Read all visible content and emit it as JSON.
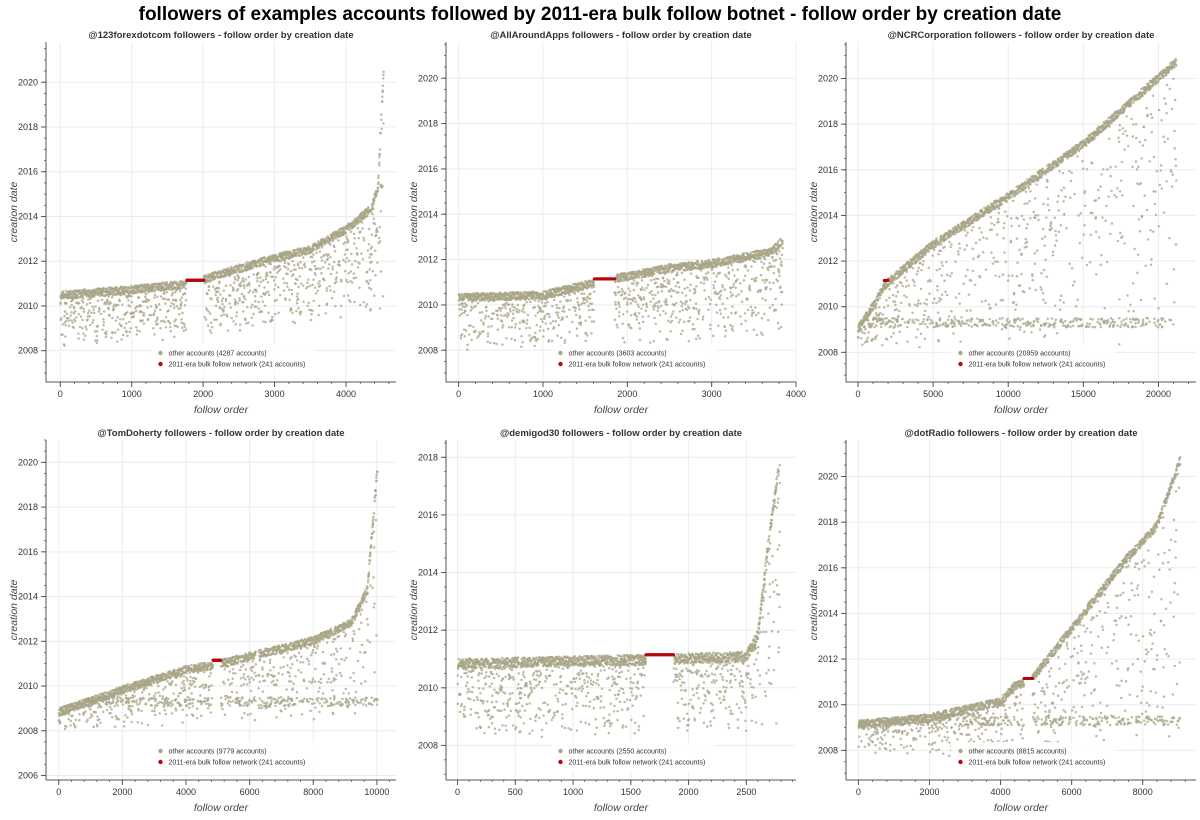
{
  "suptitle": "followers of examples accounts followed by 2011-era bulk follow botnet - follow order by creation date",
  "colors": {
    "other": "#a8a487",
    "botnet": "#b5090b",
    "grid": "#ececec",
    "axis": "#555555"
  },
  "chart_data": [
    {
      "type": "scatter",
      "title": "@123forexdotcom followers - follow order by creation date",
      "xlabel": "follow order",
      "ylabel": "creation date",
      "xlim": [
        -200,
        4700
      ],
      "ylim": [
        2006.6,
        2021.8
      ],
      "xticks": [
        0,
        1000,
        2000,
        3000,
        4000
      ],
      "yticks": [
        2008,
        2010,
        2012,
        2014,
        2016,
        2018,
        2020
      ],
      "legend_position": "bottom-center",
      "series": [
        {
          "name": "other accounts (4287 accounts)",
          "count": 4287,
          "color": "#a8a487"
        },
        {
          "name": "2011-era bulk follow network (241 accounts)",
          "count": 241,
          "color": "#b5090b",
          "x_range": [
            1770,
            2010
          ],
          "y": 2011.15
        }
      ],
      "shape": {
        "n": 4528,
        "top": [
          [
            0,
            2010.65
          ],
          [
            1000,
            2010.9
          ],
          [
            1770,
            2011.15
          ],
          [
            2500,
            2011.85
          ],
          [
            3000,
            2012.3
          ],
          [
            3500,
            2012.7
          ],
          [
            4000,
            2013.6
          ],
          [
            4350,
            2014.5
          ],
          [
            4450,
            2015.5
          ],
          [
            4528,
            2020.9
          ]
        ],
        "low": [
          [
            0,
            2008.0
          ],
          [
            4528,
            2009.5
          ]
        ],
        "gaps": [
          [
            1770,
            2010
          ]
        ]
      }
    },
    {
      "type": "scatter",
      "title": "@AllAroundApps followers - follow order by creation date",
      "xlabel": "follow order",
      "ylabel": "creation date",
      "xlim": [
        -150,
        4000
      ],
      "ylim": [
        2006.6,
        2021.6
      ],
      "xticks": [
        0,
        1000,
        2000,
        3000,
        4000
      ],
      "xtick_labels": [
        "0",
        "1000",
        "2000",
        "3000",
        "4000"
      ],
      "yticks": [
        2008,
        2010,
        2012,
        2014,
        2016,
        2018,
        2020
      ],
      "legend_position": "bottom-center",
      "series": [
        {
          "name": "other accounts (3603 accounts)",
          "count": 3603,
          "color": "#a8a487"
        },
        {
          "name": "2011-era bulk follow network (241 accounts)",
          "count": 241,
          "color": "#b5090b",
          "x_range": [
            1610,
            1850
          ],
          "y": 2011.15
        }
      ],
      "shape": {
        "n": 3844,
        "top": [
          [
            0,
            2010.5
          ],
          [
            1000,
            2010.6
          ],
          [
            1610,
            2011.15
          ],
          [
            2500,
            2011.8
          ],
          [
            3000,
            2012.0
          ],
          [
            3700,
            2012.5
          ],
          [
            3844,
            2013.0
          ]
        ],
        "low": [
          [
            0,
            2008.0
          ],
          [
            3844,
            2008.5
          ]
        ],
        "gaps": [
          [
            1610,
            1850
          ]
        ]
      }
    },
    {
      "type": "scatter",
      "title": "@NCRCorporation followers - follow order by creation date",
      "xlabel": "follow order",
      "ylabel": "creation date",
      "xlim": [
        -800,
        22500
      ],
      "ylim": [
        2006.7,
        2021.6
      ],
      "xticks": [
        0,
        5000,
        10000,
        15000,
        20000
      ],
      "yticks": [
        2008,
        2010,
        2012,
        2014,
        2016,
        2018,
        2020
      ],
      "legend_position": "bottom-center",
      "series": [
        {
          "name": "other accounts (20959 accounts)",
          "count": 20959,
          "color": "#a8a487"
        },
        {
          "name": "2011-era bulk follow network (241 accounts)",
          "count": 241,
          "color": "#b5090b",
          "x_range": [
            1750,
            1990
          ],
          "y": 2011.15
        }
      ],
      "shape": {
        "n": 21200,
        "top": [
          [
            0,
            2009.2
          ],
          [
            1000,
            2010.2
          ],
          [
            1900,
            2011.2
          ],
          [
            5000,
            2012.9
          ],
          [
            10000,
            2015.0
          ],
          [
            15000,
            2017.3
          ],
          [
            21200,
            2020.9
          ]
        ],
        "low": [
          [
            0,
            2008.1
          ],
          [
            21200,
            2008.1
          ]
        ],
        "band": 2009.3,
        "gaps": []
      }
    },
    {
      "type": "scatter",
      "title": "@TomDoherty followers - follow order by creation date",
      "xlabel": "follow order",
      "ylabel": "creation date",
      "xlim": [
        -400,
        10600
      ],
      "ylim": [
        2005.8,
        2021.0
      ],
      "xticks": [
        0,
        2000,
        4000,
        6000,
        8000,
        10000
      ],
      "yticks": [
        2006,
        2008,
        2010,
        2012,
        2014,
        2016,
        2018,
        2020
      ],
      "legend_position": "bottom-center",
      "series": [
        {
          "name": "other accounts (9779 accounts)",
          "count": 9779,
          "color": "#a8a487"
        },
        {
          "name": "2011-era bulk follow network (241 accounts)",
          "count": 241,
          "color": "#b5090b",
          "x_range": [
            4850,
            5090
          ],
          "y": 2011.15
        }
      ],
      "shape": {
        "n": 10020,
        "top": [
          [
            0,
            2009.0
          ],
          [
            2000,
            2010.0
          ],
          [
            4000,
            2010.9
          ],
          [
            5000,
            2011.15
          ],
          [
            6000,
            2011.5
          ],
          [
            8000,
            2012.2
          ],
          [
            9200,
            2013.0
          ],
          [
            9700,
            2014.5
          ],
          [
            10020,
            2020.0
          ]
        ],
        "low": [
          [
            0,
            2008.0
          ],
          [
            10020,
            2008.5
          ]
        ],
        "band": 2009.3,
        "gaps": [
          [
            4850,
            5090
          ],
          [
            6200,
            6280
          ]
        ]
      }
    },
    {
      "type": "scatter",
      "title": "@demigod30 followers - follow order by creation date",
      "xlabel": "follow order",
      "ylabel": "creation date",
      "xlim": [
        -100,
        2930
      ],
      "ylim": [
        2006.8,
        2018.6
      ],
      "xticks": [
        0,
        500,
        1000,
        1500,
        2000,
        2500
      ],
      "yticks": [
        2008,
        2010,
        2012,
        2014,
        2016,
        2018
      ],
      "legend_position": "bottom-center",
      "series": [
        {
          "name": "other accounts (2550 accounts)",
          "count": 2550,
          "color": "#a8a487"
        },
        {
          "name": "2011-era bulk follow network (241 accounts)",
          "count": 241,
          "color": "#b5090b",
          "x_range": [
            1630,
            1870
          ],
          "y": 2011.15
        }
      ],
      "shape": {
        "n": 2791,
        "top": [
          [
            0,
            2011.0
          ],
          [
            1000,
            2011.1
          ],
          [
            1630,
            2011.15
          ],
          [
            2500,
            2011.25
          ],
          [
            2600,
            2012.0
          ],
          [
            2700,
            2015.5
          ],
          [
            2791,
            2018.1
          ]
        ],
        "low": [
          [
            0,
            2008.2
          ],
          [
            2791,
            2008.5
          ]
        ],
        "gaps": [
          [
            1630,
            1870
          ]
        ]
      }
    },
    {
      "type": "scatter",
      "title": "@dotRadio followers - follow order by creation date",
      "xlabel": "follow order",
      "ylabel": "creation date",
      "xlim": [
        -350,
        9500
      ],
      "ylim": [
        2006.7,
        2021.6
      ],
      "xticks": [
        0,
        2000,
        4000,
        6000,
        8000
      ],
      "yticks": [
        2008,
        2010,
        2012,
        2014,
        2016,
        2018,
        2020
      ],
      "legend_position": "bottom-center",
      "series": [
        {
          "name": "other accounts (8815 accounts)",
          "count": 8815,
          "color": "#a8a487"
        },
        {
          "name": "2011-era bulk follow network (241 accounts)",
          "count": 241,
          "color": "#b5090b",
          "x_range": [
            4660,
            4900
          ],
          "y": 2011.15
        }
      ],
      "shape": {
        "n": 9056,
        "top": [
          [
            0,
            2009.3
          ],
          [
            2000,
            2009.6
          ],
          [
            4000,
            2010.3
          ],
          [
            4400,
            2011.0
          ],
          [
            4800,
            2011.15
          ],
          [
            6000,
            2013.5
          ],
          [
            7500,
            2016.5
          ],
          [
            8400,
            2018.0
          ],
          [
            9056,
            2020.9
          ]
        ],
        "low": [
          [
            0,
            2007.8
          ],
          [
            9056,
            2007.6
          ]
        ],
        "band": 2009.3,
        "gaps": [
          [
            4660,
            4900
          ]
        ]
      }
    }
  ]
}
